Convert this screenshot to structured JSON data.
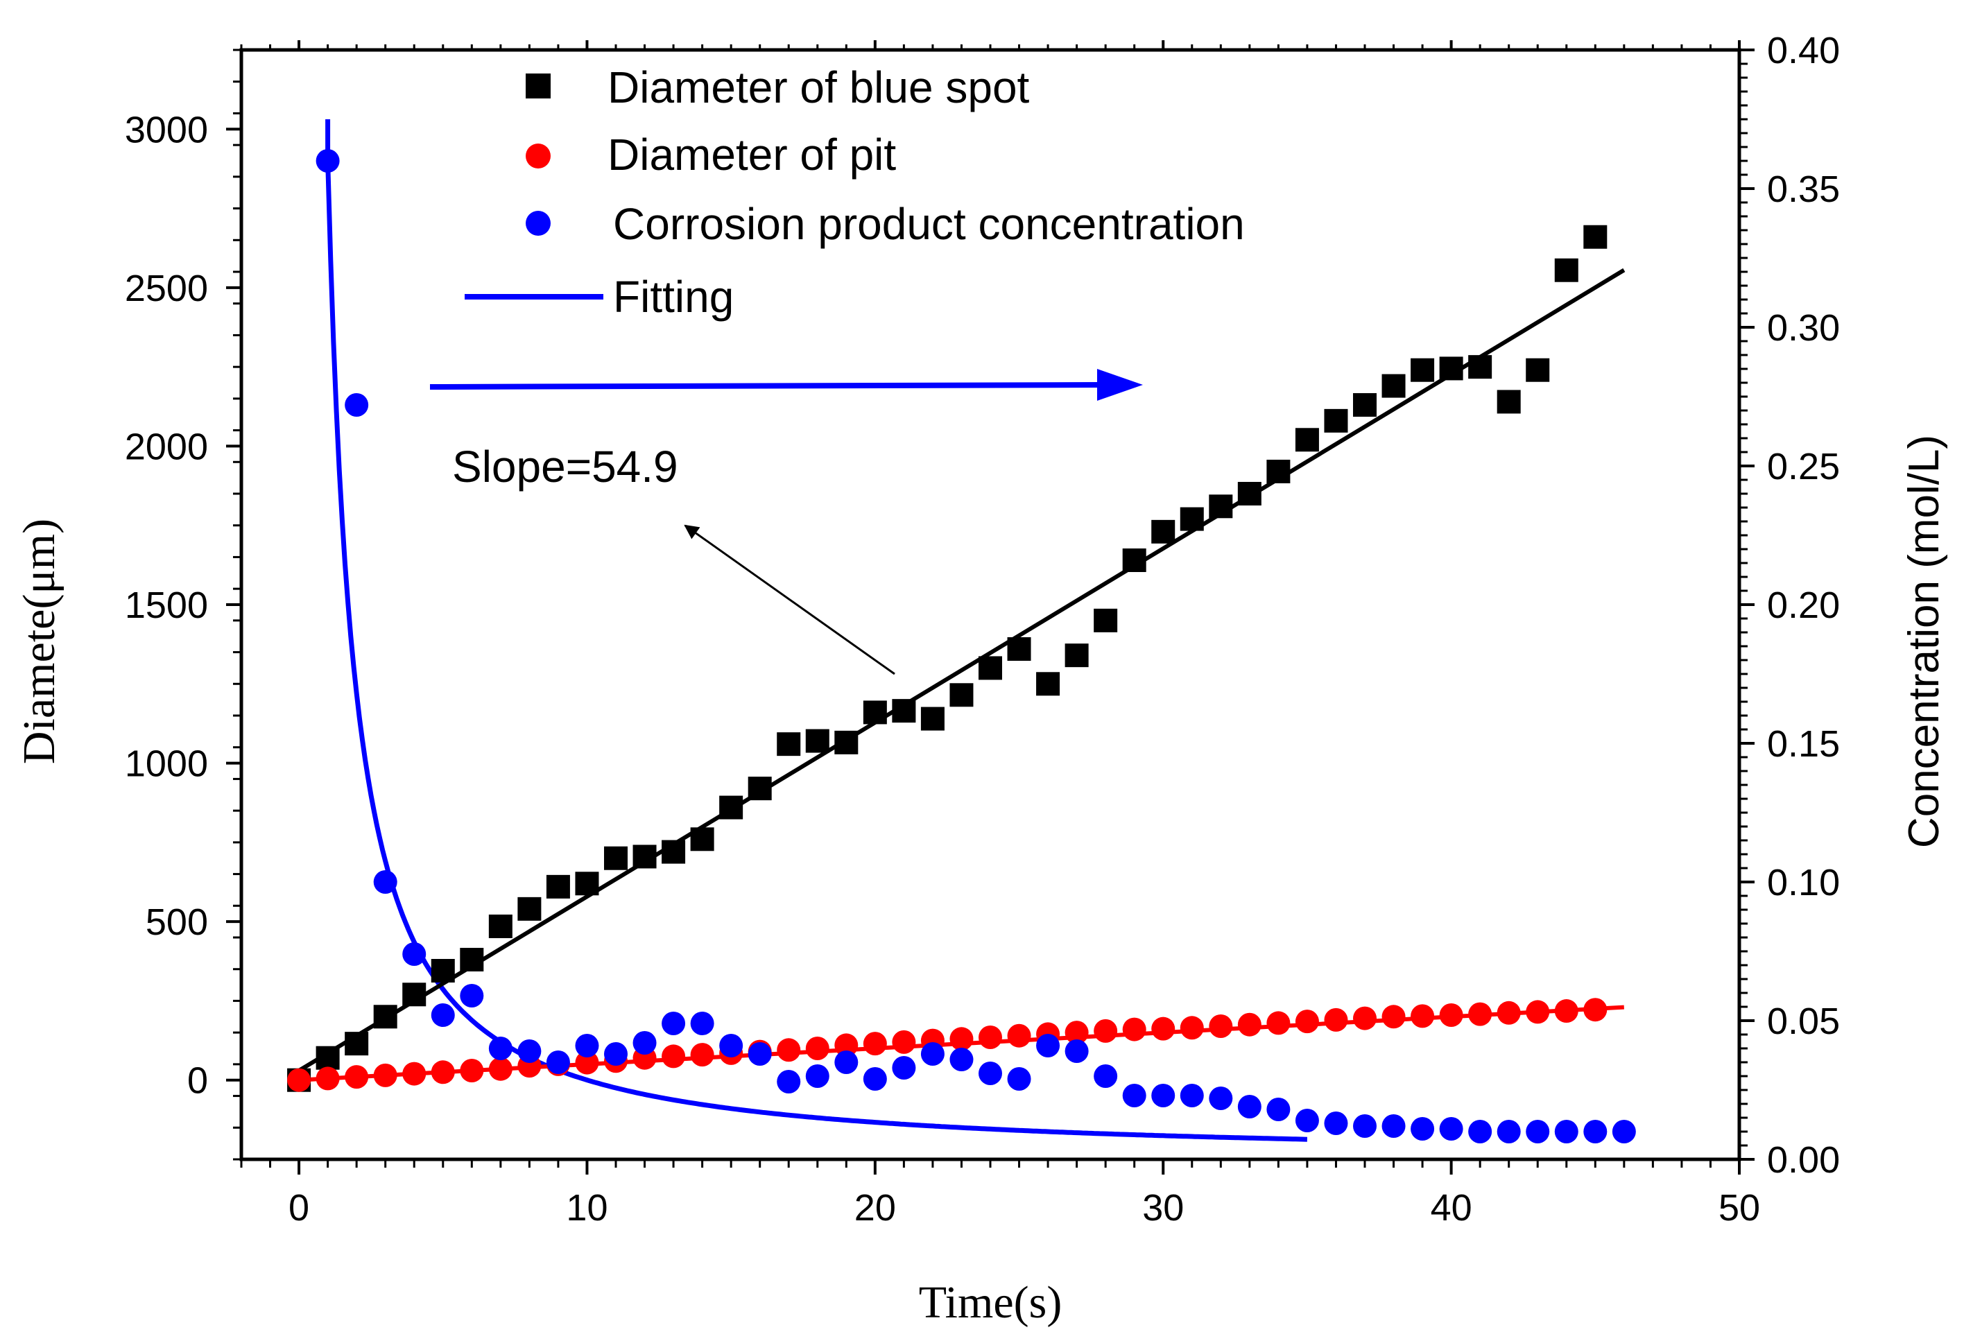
{
  "chart_data": {
    "type": "scatter",
    "title": "",
    "xlabel": "Time(s)",
    "ylabel_left": "Diamete(μm)",
    "ylabel_right": "Concentration (mol/L)",
    "xlim": [
      -2,
      50
    ],
    "ylim_left": [
      -250,
      3250
    ],
    "ylim_right": [
      0.0,
      0.4
    ],
    "x_ticks": [
      0,
      10,
      20,
      30,
      40,
      50
    ],
    "y_left_ticks": [
      0,
      500,
      1000,
      1500,
      2000,
      2500,
      3000
    ],
    "y_right_ticks": [
      "0.00",
      "0.05",
      "0.10",
      "0.15",
      "0.20",
      "0.25",
      "0.30",
      "0.35",
      "0.40"
    ],
    "legend_position": "top-center",
    "series": [
      {
        "name": "Diameter of blue spot",
        "axis": "left",
        "marker": "square",
        "color": "#000000",
        "x": [
          0,
          1,
          2,
          3,
          4,
          5,
          6,
          7,
          8,
          9,
          10,
          11,
          12,
          13,
          14,
          15,
          16,
          17,
          18,
          19,
          20,
          21,
          22,
          23,
          24,
          25,
          26,
          27,
          28,
          29,
          30,
          31,
          32,
          33,
          34,
          35,
          36,
          37,
          38,
          39,
          40,
          41,
          42,
          43,
          44,
          45
        ],
        "y": [
          0,
          70,
          115,
          200,
          270,
          345,
          380,
          485,
          540,
          610,
          620,
          700,
          705,
          720,
          760,
          860,
          920,
          1060,
          1070,
          1065,
          1160,
          1165,
          1140,
          1215,
          1300,
          1360,
          1250,
          1340,
          1450,
          1640,
          1730,
          1770,
          1810,
          1850,
          1920,
          2020,
          2080,
          2130,
          2190,
          2240,
          2245,
          2250,
          2140,
          2240,
          2555,
          2660
        ]
      },
      {
        "name": "Diameter of pit",
        "axis": "left",
        "marker": "circle",
        "color": "#ff0000",
        "x": [
          0,
          1,
          2,
          3,
          4,
          5,
          6,
          7,
          8,
          9,
          10,
          11,
          12,
          13,
          14,
          15,
          16,
          17,
          18,
          19,
          20,
          21,
          22,
          23,
          24,
          25,
          26,
          27,
          28,
          29,
          30,
          31,
          32,
          33,
          34,
          35,
          36,
          37,
          38,
          39,
          40,
          41,
          42,
          43,
          44,
          45
        ],
        "y": [
          0,
          5,
          10,
          15,
          20,
          25,
          30,
          35,
          45,
          50,
          55,
          60,
          70,
          75,
          80,
          85,
          90,
          95,
          100,
          110,
          115,
          120,
          125,
          130,
          135,
          140,
          145,
          150,
          155,
          160,
          162,
          165,
          170,
          175,
          180,
          185,
          190,
          195,
          200,
          202,
          205,
          208,
          212,
          215,
          218,
          222
        ]
      },
      {
        "name": "Corrosion product concentration",
        "axis": "right",
        "marker": "circle",
        "color": "#0000ff",
        "x": [
          1,
          2,
          3,
          4,
          5,
          6,
          7,
          8,
          9,
          10,
          11,
          12,
          13,
          14,
          15,
          16,
          17,
          18,
          19,
          20,
          21,
          22,
          23,
          24,
          25,
          26,
          27,
          28,
          29,
          30,
          31,
          32,
          33,
          34,
          35,
          36,
          37,
          38,
          39,
          40,
          41,
          42,
          43,
          44,
          45,
          46
        ],
        "y": [
          0.36,
          0.272,
          0.1,
          0.074,
          0.052,
          0.059,
          0.04,
          0.039,
          0.035,
          0.041,
          0.038,
          0.042,
          0.049,
          0.049,
          0.041,
          0.038,
          0.028,
          0.03,
          0.035,
          0.029,
          0.033,
          0.038,
          0.036,
          0.031,
          0.029,
          0.041,
          0.039,
          0.03,
          0.023,
          0.023,
          0.023,
          0.022,
          0.019,
          0.018,
          0.014,
          0.013,
          0.012,
          0.012,
          0.011,
          0.011,
          0.01,
          0.01,
          0.01,
          0.01,
          0.01,
          0.01
        ]
      }
    ],
    "fits": [
      {
        "name": "Fitting",
        "axis": "right",
        "color": "#0000ff",
        "form": "y = a * x^(-b)",
        "a": 0.36,
        "b": 1.1,
        "x_range": [
          1,
          35
        ]
      },
      {
        "name": "",
        "axis": "left",
        "color": "#000000",
        "form": "linear",
        "slope": 54.9,
        "intercept": 30,
        "x_range": [
          0,
          46
        ]
      },
      {
        "name": "",
        "axis": "left",
        "color": "#ff0000",
        "form": "linear",
        "slope": 5.0,
        "intercept": 0,
        "x_range": [
          0,
          46
        ]
      }
    ],
    "legend": [
      {
        "label": "Diameter of blue spot",
        "symbol": "square",
        "color": "#000000"
      },
      {
        "label": "Diameter of pit",
        "symbol": "circle",
        "color": "#ff0000"
      },
      {
        "label": "Corrosion product concentration",
        "symbol": "circle",
        "color": "#0000ff"
      },
      {
        "label": "Fitting",
        "symbol": "line",
        "color": "#0000ff"
      }
    ],
    "annotations": {
      "slope_label": "Slope=54.9",
      "right_arrow_color": "#0000ff"
    }
  }
}
